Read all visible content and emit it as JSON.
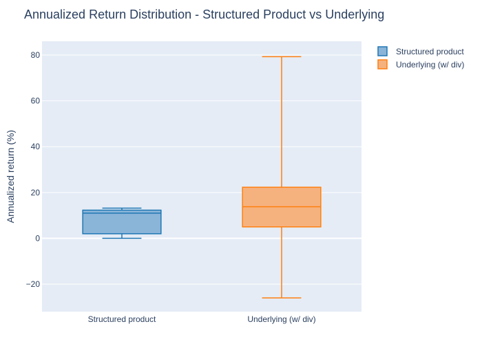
{
  "chart_data": {
    "type": "box",
    "title": "Annualized Return Distribution - Structured Product vs Underlying",
    "xlabel": "",
    "ylabel": "Annualized return (%)",
    "categories": [
      "Structured product",
      "Underlying (w/ div)"
    ],
    "ylim": [
      -32,
      86
    ],
    "yticks": [
      80,
      60,
      40,
      20,
      0,
      -20
    ],
    "ytick_labels": [
      "80",
      "60",
      "40",
      "20",
      "0",
      "−20"
    ],
    "grid": true,
    "legend_position": "top-right",
    "series": [
      {
        "name": "Structured product",
        "category": "Structured product",
        "min": 0,
        "q1": 2,
        "median": 11,
        "q3": 12.3,
        "max": 13.2,
        "color": "#1f77b4",
        "fill": "#8ab4d8"
      },
      {
        "name": "Underlying (w/ div)",
        "category": "Underlying (w/ div)",
        "min": -26,
        "q1": 5,
        "median": 13.8,
        "q3": 22.3,
        "max": 79.3,
        "color": "#ff7f0e",
        "fill": "#f5b27f"
      }
    ]
  }
}
